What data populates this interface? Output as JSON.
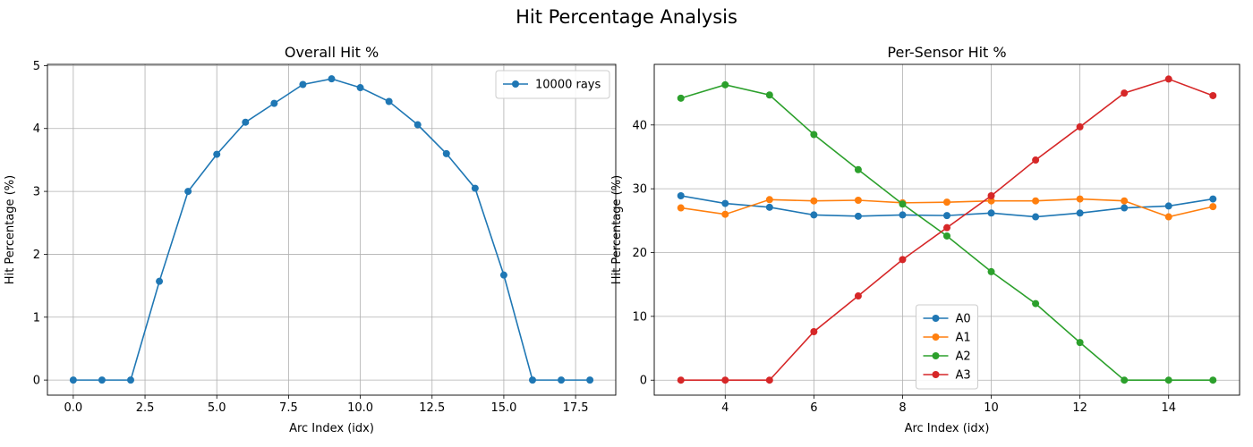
{
  "figure_title": "Hit Percentage Analysis",
  "chart_data": [
    {
      "type": "line",
      "title": "Overall Hit %",
      "xlabel": "Arc Index (idx)",
      "ylabel": "Hit Percentage (%)",
      "xlim": [
        -0.9,
        18.9
      ],
      "ylim": [
        -0.24,
        5.02
      ],
      "xticks": [
        0,
        2.5,
        5,
        7.5,
        10,
        12.5,
        15,
        17.5
      ],
      "xtick_labels": [
        "0.0",
        "2.5",
        "5.0",
        "7.5",
        "10.0",
        "12.5",
        "15.0",
        "17.5"
      ],
      "yticks": [
        0,
        1,
        2,
        3,
        4,
        5
      ],
      "ytick_labels": [
        "0",
        "1",
        "2",
        "3",
        "4",
        "5"
      ],
      "grid": true,
      "legend_position": "upper right",
      "x": [
        0,
        1,
        2,
        3,
        4,
        5,
        6,
        7,
        8,
        9,
        10,
        11,
        12,
        13,
        14,
        15,
        16,
        17,
        18
      ],
      "series": [
        {
          "name": "10000 rays",
          "color": "#1f77b4",
          "values": [
            0,
            0,
            0,
            1.57,
            3.0,
            3.59,
            4.1,
            4.4,
            4.7,
            4.79,
            4.65,
            4.43,
            4.06,
            3.6,
            3.05,
            1.67,
            0,
            0,
            0
          ]
        }
      ]
    },
    {
      "type": "line",
      "title": "Per-Sensor Hit %",
      "xlabel": "Arc Index (idx)",
      "ylabel": "Hit Percentage (%)",
      "xlim": [
        2.4,
        15.6
      ],
      "ylim": [
        -2.35,
        49.5
      ],
      "xticks": [
        4,
        6,
        8,
        10,
        12,
        14
      ],
      "xtick_labels": [
        "4",
        "6",
        "8",
        "10",
        "12",
        "14"
      ],
      "yticks": [
        0,
        10,
        20,
        30,
        40
      ],
      "ytick_labels": [
        "0",
        "10",
        "20",
        "30",
        "40"
      ],
      "grid": true,
      "legend_position": "lower center",
      "x": [
        3,
        4,
        5,
        6,
        7,
        8,
        9,
        10,
        11,
        12,
        13,
        14,
        15
      ],
      "series": [
        {
          "name": "A0",
          "color": "#1f77b4",
          "values": [
            28.9,
            27.7,
            27.1,
            25.9,
            25.7,
            25.9,
            25.8,
            26.2,
            25.6,
            26.2,
            27.0,
            27.3,
            28.4
          ]
        },
        {
          "name": "A1",
          "color": "#ff7f0e",
          "values": [
            27.0,
            26.0,
            28.3,
            28.1,
            28.2,
            27.8,
            27.9,
            28.1,
            28.1,
            28.4,
            28.1,
            25.6,
            27.2
          ]
        },
        {
          "name": "A2",
          "color": "#2ca02c",
          "values": [
            44.2,
            46.3,
            44.7,
            38.5,
            33.0,
            27.6,
            22.6,
            17.0,
            12.0,
            5.9,
            0,
            0,
            0
          ]
        },
        {
          "name": "A3",
          "color": "#d62728",
          "values": [
            0,
            0,
            0,
            7.6,
            13.2,
            18.9,
            23.9,
            28.9,
            34.5,
            39.7,
            45.0,
            47.2,
            44.6
          ]
        }
      ]
    }
  ]
}
